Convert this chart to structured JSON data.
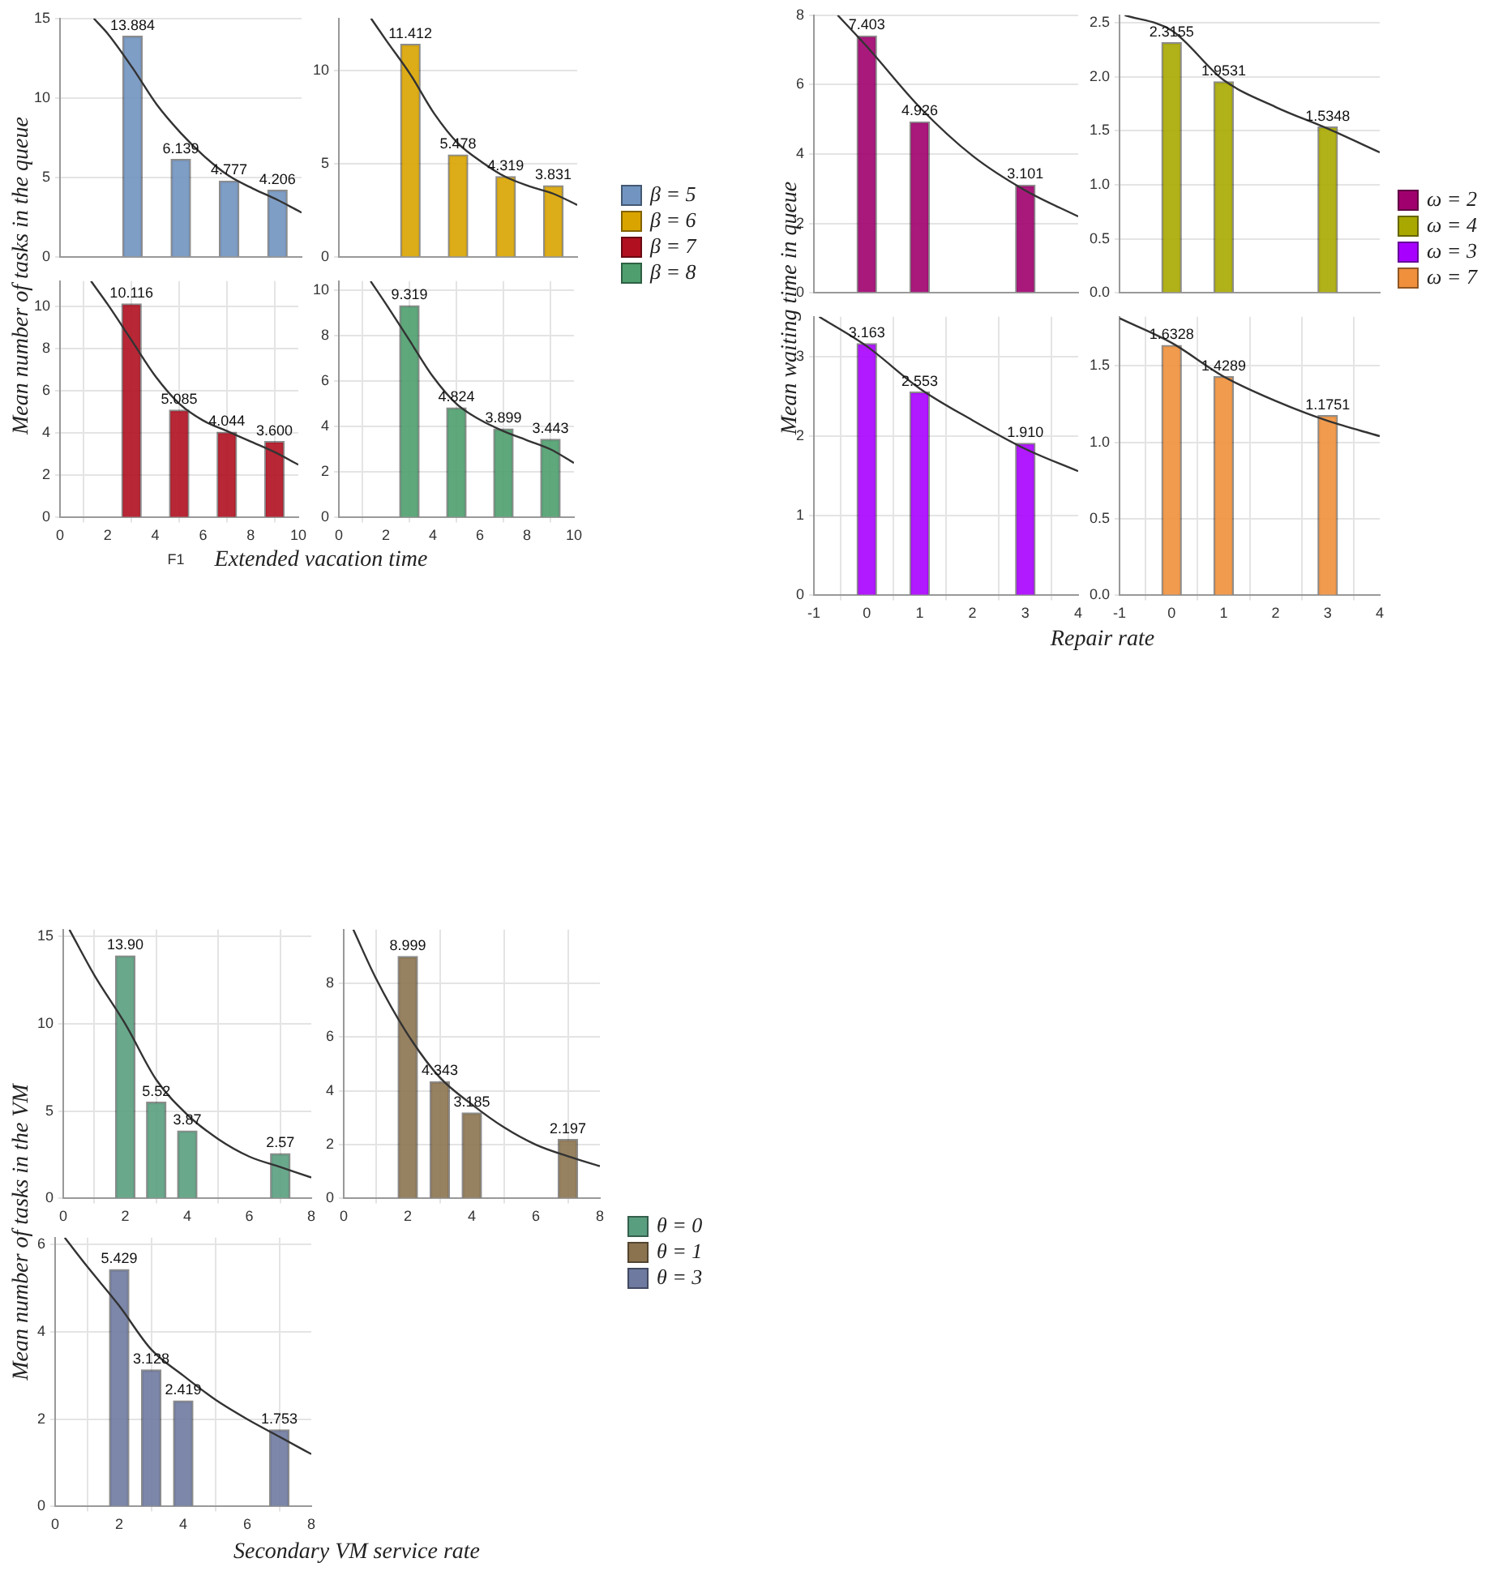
{
  "chart_data": [
    {
      "type": "bar",
      "ylabel": "Mean number of tasks in the queue",
      "xlabel": "Extended vacation time",
      "xlim": [
        0,
        10
      ],
      "ylim": [
        0,
        15
      ],
      "yticks": [
        0,
        5,
        10,
        15
      ],
      "grid": true,
      "legend": "right",
      "tick_labels": "y",
      "series": [
        {
          "name": "β = 5",
          "color": "#7194c0",
          "x": [
            3,
            5,
            7,
            9
          ],
          "values": [
            13.884,
            6.139,
            4.777,
            4.206
          ],
          "value_labels": [
            "13.884",
            "6.139",
            "4.777",
            "4.206"
          ]
        },
        {
          "type": "line",
          "color": "#333333",
          "x": [
            1.4,
            2,
            3,
            4,
            5,
            6,
            7,
            8,
            9,
            10
          ],
          "values": [
            15,
            14,
            11.9,
            9.6,
            7.8,
            6.3,
            5.1,
            4.3,
            3.6,
            2.8
          ]
        }
      ]
    },
    {
      "type": "bar",
      "xlim": [
        0,
        10
      ],
      "ylim": [
        0,
        12.8
      ],
      "yticks": [
        0,
        5,
        10
      ],
      "grid": true,
      "legend": "right",
      "tick_labels": "y",
      "series": [
        {
          "name": "β = 6",
          "color": "#d9a400",
          "x": [
            3,
            5,
            7,
            9
          ],
          "values": [
            11.412,
            5.478,
            4.319,
            3.831
          ],
          "value_labels": [
            "11.412",
            "5.478",
            "4.319",
            "3.831"
          ]
        },
        {
          "type": "line",
          "color": "#333333",
          "x": [
            1.35,
            2,
            3,
            4,
            5,
            6,
            7,
            8,
            9,
            10
          ],
          "values": [
            12.8,
            11.6,
            9.8,
            7.7,
            6.1,
            5.1,
            4.3,
            3.8,
            3.4,
            2.8
          ]
        }
      ]
    },
    {
      "type": "bar",
      "xlim": [
        0,
        10
      ],
      "ylim": [
        0,
        11.2
      ],
      "yticks": [
        0,
        2,
        4,
        6,
        8,
        10
      ],
      "xticks": [
        0,
        2,
        4,
        6,
        8,
        10
      ],
      "grid": true,
      "legend": "right",
      "annotations": [
        "F1"
      ],
      "series": [
        {
          "name": "β = 7",
          "color": "#b01020",
          "x": [
            3,
            5,
            7,
            9
          ],
          "values": [
            10.116,
            5.085,
            4.044,
            3.6
          ],
          "value_labels": [
            "10.116",
            "5.085",
            "4.044",
            "3.600"
          ]
        },
        {
          "type": "line",
          "color": "#333333",
          "x": [
            1.3,
            2,
            3,
            4,
            5,
            6,
            7,
            8,
            9,
            10
          ],
          "values": [
            11.2,
            10.1,
            8.4,
            6.7,
            5.4,
            4.6,
            4.1,
            3.6,
            3.1,
            2.5
          ]
        }
      ]
    },
    {
      "type": "bar",
      "xlim": [
        0,
        10
      ],
      "ylim": [
        0,
        10.4
      ],
      "yticks": [
        0,
        2,
        4,
        6,
        8,
        10
      ],
      "xticks": [
        0,
        2,
        4,
        6,
        8,
        10
      ],
      "grid": true,
      "legend": "right",
      "series": [
        {
          "name": "β = 8",
          "color": "#4e9e6e",
          "x": [
            3,
            5,
            7,
            9
          ],
          "values": [
            9.319,
            4.824,
            3.899,
            3.443
          ],
          "value_labels": [
            "9.319",
            "4.824",
            "3.899",
            "3.443"
          ]
        },
        {
          "type": "line",
          "color": "#333333",
          "x": [
            1.35,
            2,
            3,
            4,
            5,
            6,
            7,
            8,
            9,
            10
          ],
          "values": [
            10.4,
            9.4,
            7.8,
            6.2,
            5,
            4.3,
            3.8,
            3.4,
            3,
            2.4
          ]
        }
      ]
    },
    {
      "type": "bar",
      "ylabel": "Mean waiting time in queue",
      "xlabel": "Repair rate",
      "xlim": [
        -1,
        4
      ],
      "ylim": [
        0,
        8
      ],
      "yticks": [
        0,
        2,
        4,
        6,
        8
      ],
      "grid": true,
      "legend": "right",
      "tick_labels": "y",
      "series": [
        {
          "name": "ω = 2",
          "color": "#a0006e",
          "x": [
            0,
            1,
            3
          ],
          "values": [
            7.403,
            4.926,
            3.101
          ],
          "value_labels": [
            "7.403",
            "4.926",
            "3.101"
          ]
        },
        {
          "type": "line",
          "color": "#333333",
          "x": [
            -0.55,
            0,
            1,
            2,
            3,
            4
          ],
          "values": [
            8,
            7.1,
            5.35,
            3.95,
            2.95,
            2.2
          ]
        }
      ]
    },
    {
      "type": "bar",
      "xlim": [
        -1,
        4
      ],
      "ylim": [
        0,
        2.57
      ],
      "yticks": [
        {
          "value": 0,
          "label": "0.0"
        },
        {
          "value": 0.5,
          "label": "0.5"
        },
        {
          "value": 1,
          "label": "1.0"
        },
        {
          "value": 1.5,
          "label": "1.5"
        },
        {
          "value": 2,
          "label": "2.0"
        },
        {
          "value": 2.5,
          "label": "2.5"
        }
      ],
      "grid": true,
      "legend": "right",
      "tick_labels": "y",
      "series": [
        {
          "name": "ω = 4",
          "color": "#a8a800",
          "x": [
            0,
            1,
            3
          ],
          "values": [
            2.3155,
            1.9531,
            1.5348
          ],
          "value_labels": [
            "2.3155",
            "1.9531",
            "1.5348"
          ]
        },
        {
          "type": "line",
          "color": "#333333",
          "x": [
            -0.9,
            0,
            1,
            2,
            3,
            4
          ],
          "values": [
            2.57,
            2.43,
            1.97,
            1.72,
            1.52,
            1.3
          ]
        }
      ]
    },
    {
      "type": "bar",
      "xlim": [
        -1,
        4
      ],
      "ylim": [
        0,
        3.5
      ],
      "yticks": [
        0,
        1,
        2,
        3
      ],
      "xticks": [
        -1,
        0,
        1,
        2,
        3,
        4
      ],
      "grid": true,
      "legend": "right",
      "series": [
        {
          "name": "ω = 3",
          "color": "#a800ff",
          "x": [
            0,
            1,
            3
          ],
          "values": [
            3.163,
            2.553,
            1.91
          ],
          "value_labels": [
            "3.163",
            "2.553",
            "1.910"
          ]
        },
        {
          "type": "line",
          "color": "#333333",
          "x": [
            -0.9,
            0,
            1,
            2,
            3,
            4
          ],
          "values": [
            3.5,
            3.13,
            2.6,
            2.2,
            1.84,
            1.56
          ]
        }
      ]
    },
    {
      "type": "bar",
      "xlim": [
        -1,
        4
      ],
      "ylim": [
        0,
        1.82
      ],
      "yticks": [
        {
          "value": 0,
          "label": "0.0"
        },
        {
          "value": 0.5,
          "label": "0.5"
        },
        {
          "value": 1,
          "label": "1.0"
        },
        {
          "value": 1.5,
          "label": "1.5"
        }
      ],
      "xticks": [
        -1,
        0,
        1,
        2,
        3,
        4
      ],
      "grid": true,
      "legend": "right",
      "series": [
        {
          "name": "ω = 7",
          "color": "#f0903c",
          "x": [
            0,
            1,
            3
          ],
          "values": [
            1.6328,
            1.4289,
            1.1751
          ],
          "value_labels": [
            "1.6328",
            "1.4289",
            "1.1751"
          ]
        },
        {
          "type": "line",
          "color": "#333333",
          "x": [
            -1,
            0,
            1,
            2,
            3,
            4
          ],
          "values": [
            1.81,
            1.65,
            1.43,
            1.27,
            1.14,
            1.04
          ]
        }
      ]
    },
    {
      "type": "bar",
      "ylabel": "Mean number of tasks in the VM",
      "xlabel": "Secondary VM service rate",
      "xlim": [
        0,
        8
      ],
      "ylim": [
        0,
        15.4
      ],
      "yticks": [
        0,
        5,
        10,
        15
      ],
      "xticks": [
        0,
        2,
        4,
        6,
        8
      ],
      "grid": true,
      "legend": "right",
      "series": [
        {
          "name": "θ = 0",
          "color": "#5a9e80",
          "x": [
            2,
            3,
            4,
            7
          ],
          "values": [
            13.9,
            5.52,
            3.87,
            2.57
          ],
          "value_labels": [
            "13.90",
            "5.52",
            "3.87",
            "2.57"
          ]
        },
        {
          "type": "line",
          "color": "#333333",
          "x": [
            0.2,
            1,
            2,
            3,
            4,
            5,
            6,
            7,
            8
          ],
          "values": [
            15.4,
            12.8,
            10,
            6.8,
            4.8,
            3.4,
            2.4,
            1.8,
            1.2
          ]
        }
      ]
    },
    {
      "type": "bar",
      "xlim": [
        0,
        8
      ],
      "ylim": [
        0,
        10
      ],
      "yticks": [
        0,
        2,
        4,
        6,
        8
      ],
      "xticks": [
        0,
        2,
        4,
        6,
        8
      ],
      "grid": true,
      "legend": "right",
      "series": [
        {
          "name": "θ = 1",
          "color": "#8b7350",
          "x": [
            2,
            3,
            4,
            7
          ],
          "values": [
            8.999,
            4.343,
            3.185,
            2.197
          ],
          "value_labels": [
            "8.999",
            "4.343",
            "3.185",
            "2.197"
          ]
        },
        {
          "type": "line",
          "color": "#333333",
          "x": [
            0.3,
            1,
            2,
            3,
            4,
            5,
            6,
            7,
            8
          ],
          "values": [
            10,
            8.2,
            6.1,
            4.5,
            3.5,
            2.65,
            2,
            1.57,
            1.2
          ]
        }
      ]
    },
    {
      "type": "bar",
      "xlim": [
        0,
        8
      ],
      "ylim": [
        0,
        6.16
      ],
      "yticks": [
        0,
        2,
        4,
        6
      ],
      "xticks": [
        0,
        2,
        4,
        6,
        8
      ],
      "grid": true,
      "legend": "right",
      "series": [
        {
          "name": "θ = 3",
          "color": "#6e7aa0",
          "x": [
            2,
            3,
            4,
            7
          ],
          "values": [
            5.429,
            3.128,
            2.419,
            1.753
          ],
          "value_labels": [
            "5.429",
            "3.128",
            "2.419",
            "1.753"
          ]
        },
        {
          "type": "line",
          "color": "#333333",
          "x": [
            0.3,
            1,
            2,
            3,
            4,
            5,
            6,
            7,
            8
          ],
          "values": [
            6.16,
            5.5,
            4.6,
            3.6,
            3,
            2.45,
            2,
            1.6,
            1.2
          ]
        }
      ]
    }
  ]
}
